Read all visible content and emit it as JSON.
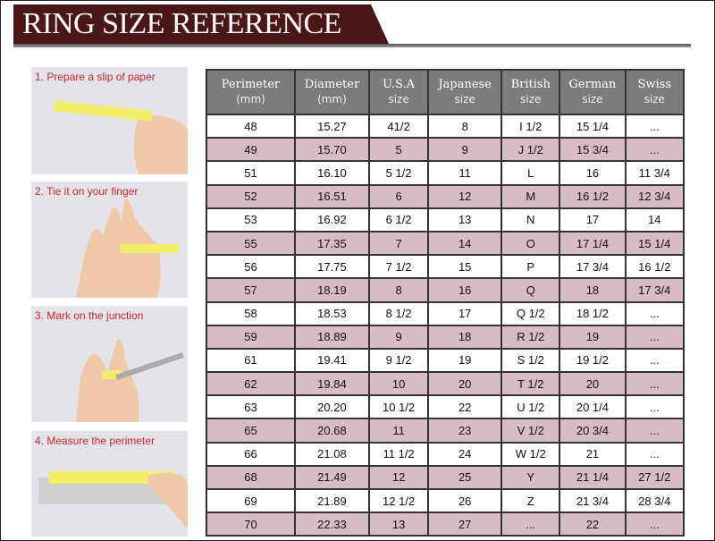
{
  "title": "RING SIZE REFERENCE",
  "steps": [
    "1. Prepare a slip of paper",
    "2. Tie it on your finger",
    "3. Mark on the junction",
    "4. Measure the perimeter"
  ],
  "colors": {
    "banner": "#4a1618",
    "header": "#7c7c7c",
    "alt_row": "#d8bcc3",
    "step_label": "#c8262c"
  },
  "table": {
    "headers": [
      [
        "Perimeter",
        "(mm)"
      ],
      [
        "Diameter",
        "(mm)"
      ],
      [
        "U.S.A",
        "size"
      ],
      [
        "Japanese",
        "size"
      ],
      [
        "British",
        "size"
      ],
      [
        "German",
        "size"
      ],
      [
        "Swiss",
        "size"
      ]
    ],
    "rows": [
      [
        "48",
        "15.27",
        "41/2",
        "8",
        "I 1/2",
        "15 1/4",
        "..."
      ],
      [
        "49",
        "15.70",
        "5",
        "9",
        "J 1/2",
        "15 3/4",
        "..."
      ],
      [
        "51",
        "16.10",
        "5 1/2",
        "11",
        "L",
        "16",
        "11 3/4"
      ],
      [
        "52",
        "16.51",
        "6",
        "12",
        "M",
        "16 1/2",
        "12 3/4"
      ],
      [
        "53",
        "16.92",
        "6 1/2",
        "13",
        "N",
        "17",
        "14"
      ],
      [
        "55",
        "17.35",
        "7",
        "14",
        "O",
        "17 1/4",
        "15 1/4"
      ],
      [
        "56",
        "17.75",
        "7 1/2",
        "15",
        "P",
        "17 3/4",
        "16 1/2"
      ],
      [
        "57",
        "18.19",
        "8",
        "16",
        "Q",
        "18",
        "17 3/4"
      ],
      [
        "58",
        "18.53",
        "8 1/2",
        "17",
        "Q 1/2",
        "18 1/2",
        "..."
      ],
      [
        "59",
        "18.89",
        "9",
        "18",
        "R 1/2",
        "19",
        "..."
      ],
      [
        "61",
        "19.41",
        "9 1/2",
        "19",
        "S 1/2",
        "19 1/2",
        "..."
      ],
      [
        "62",
        "19.84",
        "10",
        "20",
        "T 1/2",
        "20",
        "..."
      ],
      [
        "63",
        "20.20",
        "10 1/2",
        "22",
        "U 1/2",
        "20 1/4",
        "..."
      ],
      [
        "65",
        "20.68",
        "11",
        "23",
        "V 1/2",
        "20 3/4",
        "..."
      ],
      [
        "66",
        "21.08",
        "11 1/2",
        "24",
        "W 1/2",
        "21",
        "..."
      ],
      [
        "68",
        "21.49",
        "12",
        "25",
        "Y",
        "21 1/4",
        "27 1/2"
      ],
      [
        "69",
        "21.89",
        "12 1/2",
        "26",
        "Z",
        "21 3/4",
        "28 3/4"
      ],
      [
        "70",
        "22.33",
        "13",
        "27",
        "...",
        "22",
        "..."
      ]
    ]
  }
}
